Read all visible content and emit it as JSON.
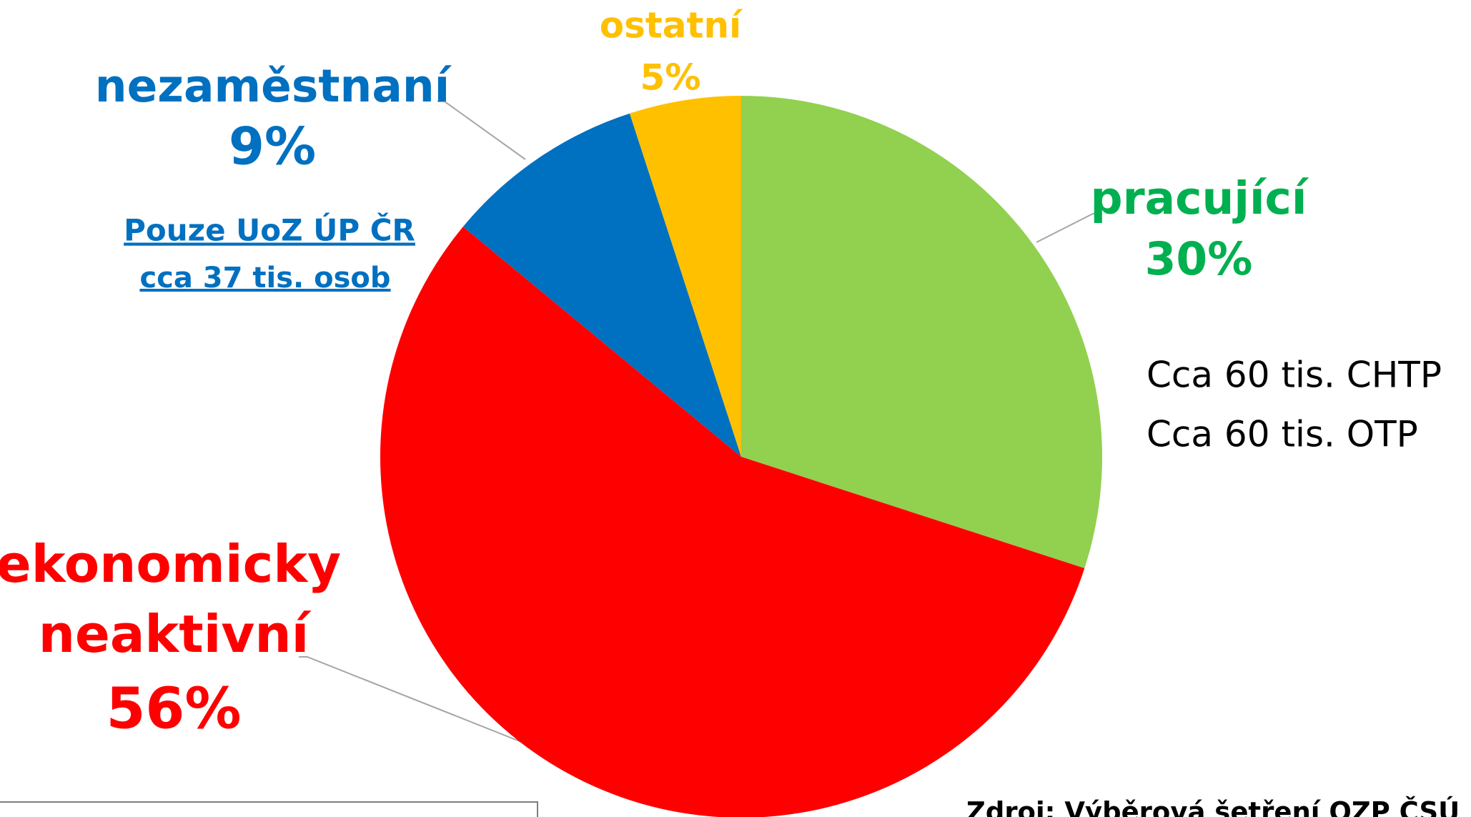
{
  "chart_data": {
    "type": "pie",
    "categories": [
      "pracující",
      "ekonomicky neaktivní",
      "nezaměstnaní",
      "ostatní"
    ],
    "values": [
      30,
      56,
      9,
      5
    ],
    "value_labels": [
      "30%",
      "56%",
      "9%",
      "5%"
    ],
    "colors": [
      "#92d050",
      "#ff0000",
      "#0070c0",
      "#ffc000"
    ],
    "label_colors": [
      "#00b050",
      "#ff0000",
      "#0070c0",
      "#ffc000"
    ],
    "annotations": [
      "Pouze UoZ ÚP ČR",
      "cca 37 tis. osob",
      "Cca 60 tis. CHTP",
      "Cca 60 tis. OTP",
      "Zdroj: Výběrová šetření OZP ČSÚ"
    ]
  }
}
